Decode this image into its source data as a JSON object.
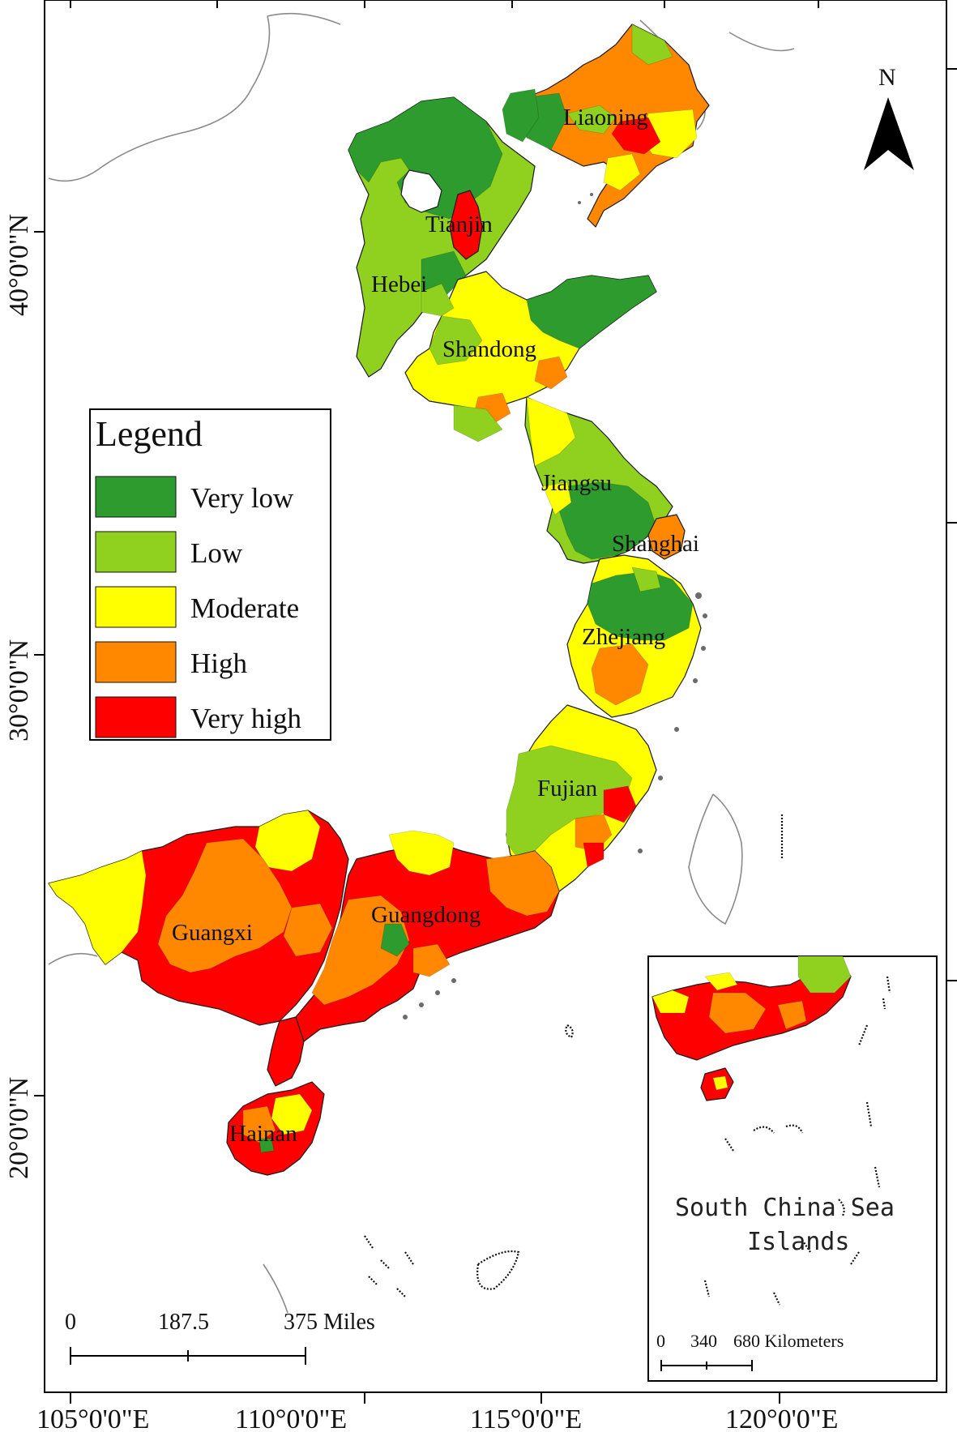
{
  "colors": {
    "very_low": "#2e9b2e",
    "low": "#8fd11e",
    "moderate": "#ffff00",
    "high": "#ff8800",
    "very_high": "#ff0000"
  },
  "axes": {
    "bottom": [
      "105°0'0\"E",
      "110°0'0\"E",
      "115°0'0\"E",
      "120°0'0\"E"
    ],
    "left": [
      "40°0'0\"N",
      "30°0'0\"N",
      "20°0'0\"N"
    ]
  },
  "legend": {
    "title": "Legend",
    "items": [
      {
        "label": "Very low",
        "key": "very_low"
      },
      {
        "label": "Low",
        "key": "low"
      },
      {
        "label": "Moderate",
        "key": "moderate"
      },
      {
        "label": "High",
        "key": "high"
      },
      {
        "label": "Very high",
        "key": "very_high"
      }
    ]
  },
  "provinces": {
    "liaoning": "Liaoning",
    "tianjin": "Tianjin",
    "hebei": "Hebei",
    "shandong": "Shandong",
    "jiangsu": "Jiangsu",
    "shanghai": "Shanghai",
    "zhejiang": "Zhejiang",
    "fujian": "Fujian",
    "guangdong": "Guangdong",
    "guangxi": "Guangxi",
    "hainan": "Hainan"
  },
  "north_arrow": {
    "label": "N",
    "icon": "north-arrow-icon"
  },
  "scale_bar": {
    "ticks": [
      "0",
      "187.5",
      "375 Miles"
    ]
  },
  "inset": {
    "title_line1": "South China Sea",
    "title_line2": "Islands",
    "scale_ticks": [
      "0",
      "340",
      "680 Kilometers"
    ]
  }
}
